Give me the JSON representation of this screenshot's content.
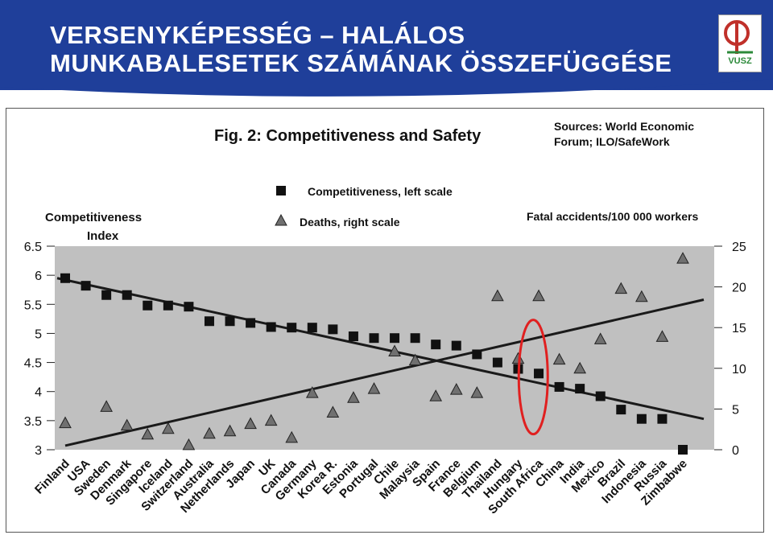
{
  "slide": {
    "title_line1": "VERSENYKÉPESSÉG – HALÁLOS",
    "title_line2": "MUNKABALESETEK SZÁMÁNAK ÖSSZEFÜGGÉSE",
    "logo_text": "VUSZ"
  },
  "colors": {
    "header_bg": "#1f3f9a",
    "plot_bg": "#c0c0c0",
    "marker": "#111111",
    "triangle": "#707070",
    "highlight": "#e02020"
  },
  "chart_data": {
    "type": "scatter",
    "title": "Fig. 2: Competitiveness and Safety",
    "sources": "Sources: World Economic Forum; ILO/SafeWork",
    "legend": [
      {
        "marker": "square",
        "label": "Competitiveness, left scale"
      },
      {
        "marker": "triangle",
        "label": "Deaths, right scale"
      }
    ],
    "left_axis_label": "Competitiveness Index",
    "right_axis_label": "Fatal accidents/100 000 workers",
    "left_ylim": [
      3,
      6.5
    ],
    "right_ylim": [
      0,
      25
    ],
    "left_ticks": [
      "3",
      "3.5",
      "4",
      "4.5",
      "5",
      "5.5",
      "6",
      "6.5"
    ],
    "right_ticks": [
      "0",
      "5",
      "10",
      "15",
      "20",
      "25"
    ],
    "categories": [
      "Finland",
      "USA",
      "Sweden",
      "Denmark",
      "Singapore",
      "Iceland",
      "Switzerland",
      "Australia",
      "Netherlands",
      "Japan",
      "UK",
      "Canada",
      "Germany",
      "Korea R.",
      "Estonia",
      "Portugal",
      "Chile",
      "Malaysia",
      "Spain",
      "France",
      "Belgium",
      "Thailand",
      "Hungary",
      "South Africa",
      "China",
      "India",
      "Mexico",
      "Brazil",
      "Indonesia",
      "Russia",
      "Zimbabwe"
    ],
    "series": [
      {
        "name": "Competitiveness, left scale",
        "axis": "left",
        "marker": "square",
        "values": [
          5.95,
          5.82,
          5.66,
          5.66,
          5.48,
          5.48,
          5.46,
          5.21,
          5.21,
          5.18,
          5.11,
          5.1,
          5.1,
          5.07,
          4.95,
          4.92,
          4.92,
          4.92,
          4.81,
          4.79,
          4.64,
          4.5,
          4.39,
          4.31,
          4.08,
          4.05,
          3.92,
          3.69,
          3.53,
          3.53,
          3.0
        ]
      },
      {
        "name": "Deaths, right scale",
        "axis": "right",
        "marker": "triangle",
        "values": [
          3.3,
          5.3,
          3.0,
          1.9,
          2.6,
          0.6,
          2.0,
          2.3,
          3.2,
          3.6,
          1.5,
          7.0,
          4.6,
          6.4,
          7.5,
          12.1,
          11.0,
          6.6,
          7.4,
          7.0,
          18.9,
          11.2,
          18.9,
          11.1,
          10.0,
          13.6,
          19.8,
          18.8,
          13.9,
          23.5
        ]
      }
    ],
    "deaths_values_align": "from_Finland_excluding_USA",
    "trend_lines": [
      {
        "axis": "left",
        "from": 5.95,
        "to": 3.53
      },
      {
        "axis": "left",
        "from": 3.07,
        "to": 5.58
      }
    ],
    "highlight": "South Africa",
    "grid": false,
    "legend_position": "top-center"
  }
}
